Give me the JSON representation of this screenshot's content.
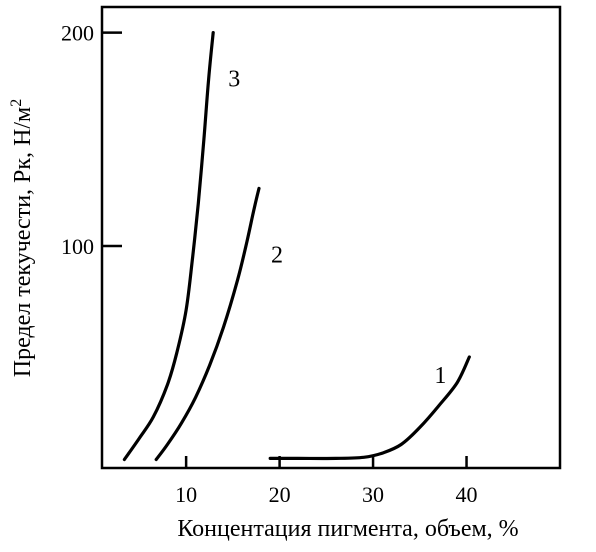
{
  "chart_data": {
    "type": "line",
    "title": "",
    "xlabel": "Концентация пигмента, объем, %",
    "ylabel_main": "Предел текучести, Рк,  Н/м",
    "ylabel_sup": "2",
    "xlim": [
      1,
      50
    ],
    "ylim": [
      -4,
      212
    ],
    "xticks": [
      10,
      20,
      30,
      40
    ],
    "yticks": [
      100,
      200
    ],
    "grid": false,
    "legend": "none",
    "series": [
      {
        "name": "1",
        "x": [
          19,
          22,
          26,
          29,
          31,
          33,
          35,
          37,
          39,
          40.3
        ],
        "y": [
          0.5,
          0.5,
          0.5,
          1,
          3,
          7,
          15,
          25,
          36,
          48
        ]
      },
      {
        "name": "2",
        "x": [
          6.8,
          8,
          9.5,
          11,
          12.5,
          14,
          15.5,
          16.5,
          17.3,
          17.8
        ],
        "y": [
          0,
          7,
          17,
          29,
          44,
          62,
          84,
          102,
          118,
          127
        ]
      },
      {
        "name": "3",
        "x": [
          3.4,
          5,
          6.5,
          8,
          9,
          10,
          10.7,
          11.3,
          11.9,
          12.4,
          12.9
        ],
        "y": [
          0,
          10,
          20,
          35,
          50,
          70,
          95,
          120,
          150,
          178,
          200
        ]
      }
    ]
  }
}
